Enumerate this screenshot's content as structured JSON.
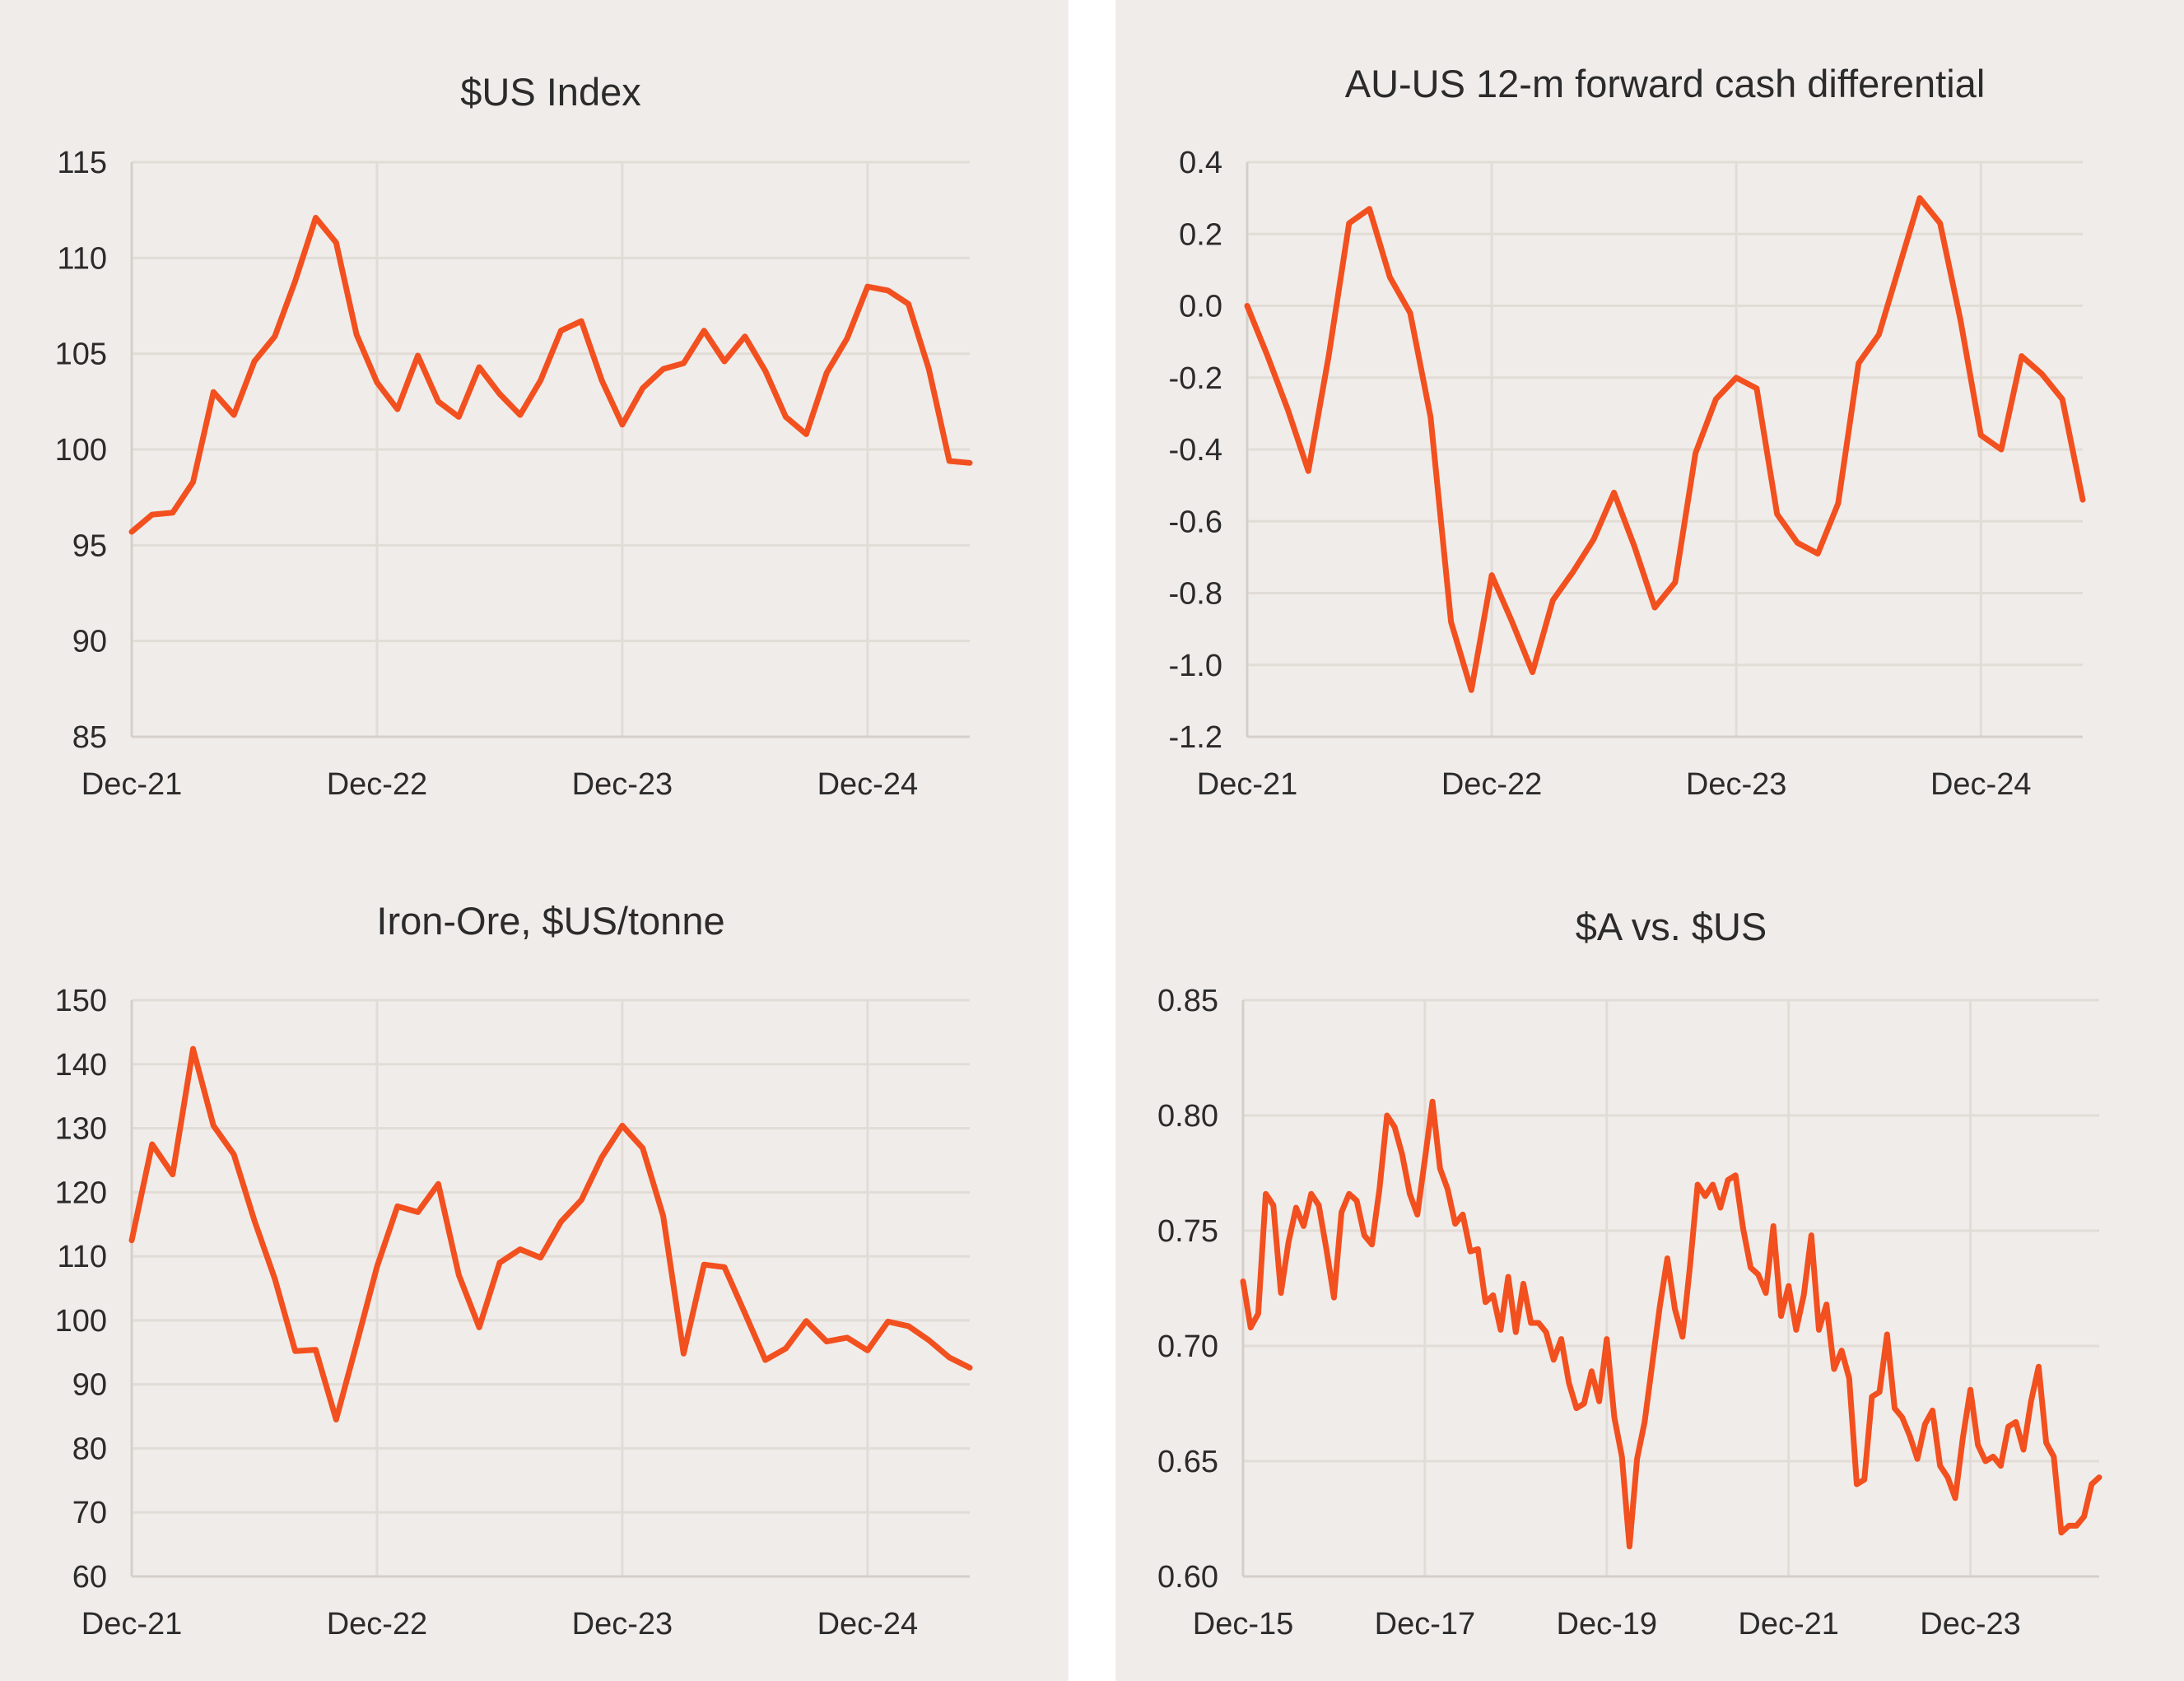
{
  "style": {
    "line_color": "#f2501f",
    "panel_bg": "#f0ece9",
    "grid_color": "#e2dcd7",
    "text_color": "#2b2b2b"
  },
  "chart_data": [
    {
      "type": "line",
      "title": "$US Index",
      "xlabel": "",
      "ylabel": "",
      "x_ticks": [
        "Dec-21",
        "Dec-22",
        "Dec-23",
        "Dec-24"
      ],
      "y_ticks": [
        "115",
        "110",
        "105",
        "100",
        "95",
        "90",
        "85"
      ],
      "ylim": [
        85,
        115
      ],
      "grid": true,
      "x": [
        0,
        1,
        2,
        3,
        4,
        5,
        6,
        7,
        8,
        9,
        10,
        11,
        12,
        13,
        14,
        15,
        16,
        17,
        18,
        19,
        20,
        21,
        22,
        23,
        24,
        25,
        26,
        27,
        28,
        29,
        30,
        31,
        32,
        33,
        34,
        35,
        36,
        37,
        38,
        39,
        40,
        41
      ],
      "x_tick_positions": [
        0,
        12,
        24,
        36
      ],
      "x_max": 41,
      "series": [
        {
          "values": [
            95.7,
            96.6,
            96.7,
            98.3,
            103.0,
            101.8,
            104.6,
            105.9,
            108.8,
            112.1,
            110.8,
            106.0,
            103.5,
            102.1,
            104.9,
            102.5,
            101.7,
            104.3,
            102.9,
            101.8,
            103.6,
            106.2,
            106.7,
            103.6,
            101.3,
            103.2,
            104.2,
            104.5,
            106.2,
            104.6,
            105.9,
            104.1,
            101.7,
            100.8,
            104.0,
            105.8,
            108.5,
            108.3,
            107.6,
            104.2,
            99.4,
            99.3
          ]
        }
      ]
    },
    {
      "type": "line",
      "title": "AU-US 12-m forward cash differential",
      "xlabel": "",
      "ylabel": "",
      "x_ticks": [
        "Dec-21",
        "Dec-22",
        "Dec-23",
        "Dec-24"
      ],
      "y_ticks": [
        "0.4",
        "0.2",
        "0.0",
        "-0.2",
        "-0.4",
        "-0.6",
        "-0.8",
        "-1.0",
        "-1.2"
      ],
      "ylim": [
        -1.2,
        0.4
      ],
      "grid": true,
      "x": [
        0,
        1,
        2,
        3,
        4,
        5,
        6,
        7,
        8,
        9,
        10,
        11,
        12,
        13,
        14,
        15,
        16,
        17,
        18,
        19,
        20,
        21,
        22,
        23,
        24,
        25,
        26,
        27,
        28,
        29,
        30,
        31,
        32,
        33,
        34,
        35,
        36,
        37,
        38,
        39,
        40,
        41
      ],
      "x_tick_positions": [
        0,
        12,
        24,
        36
      ],
      "x_max": 41,
      "series": [
        {
          "values": [
            0.0,
            -0.14,
            -0.29,
            -0.46,
            -0.14,
            0.23,
            0.27,
            0.08,
            -0.02,
            -0.31,
            -0.88,
            -1.07,
            -0.75,
            -0.88,
            -1.02,
            -0.82,
            -0.74,
            -0.65,
            -0.52,
            -0.67,
            -0.84,
            -0.77,
            -0.41,
            -0.26,
            -0.2,
            -0.23,
            -0.58,
            -0.66,
            -0.69,
            -0.55,
            -0.16,
            -0.08,
            0.11,
            0.3,
            0.23,
            -0.04,
            -0.36,
            -0.4,
            -0.14,
            -0.19,
            -0.26,
            -0.54
          ]
        }
      ]
    },
    {
      "type": "line",
      "title": "Iron-Ore, $US/tonne",
      "xlabel": "",
      "ylabel": "",
      "x_ticks": [
        "Dec-21",
        "Dec-22",
        "Dec-23",
        "Dec-24"
      ],
      "y_ticks": [
        "150",
        "140",
        "130",
        "120",
        "110",
        "100",
        "90",
        "80",
        "70",
        "60"
      ],
      "ylim": [
        60,
        150
      ],
      "grid": true,
      "x": [
        0,
        1,
        2,
        3,
        4,
        5,
        6,
        7,
        8,
        9,
        10,
        11,
        12,
        13,
        14,
        15,
        16,
        17,
        18,
        19,
        20,
        21,
        22,
        23,
        24,
        25,
        26,
        27,
        28,
        29,
        30,
        31,
        32,
        33,
        34,
        35,
        36,
        37,
        38,
        39,
        40,
        41
      ],
      "x_tick_positions": [
        0,
        12,
        24,
        36
      ],
      "x_max": 41,
      "series": [
        {
          "values": [
            112.5,
            127.5,
            122.8,
            142.4,
            130.4,
            125.9,
            115.6,
            106.5,
            95.2,
            95.4,
            84.5,
            96.3,
            108.4,
            117.8,
            116.9,
            121.3,
            107.1,
            98.9,
            109.0,
            111.1,
            109.8,
            115.4,
            118.8,
            125.5,
            130.4,
            126.9,
            116.3,
            94.8,
            108.7,
            108.3,
            101.1,
            93.8,
            95.6,
            99.9,
            96.7,
            97.3,
            95.3,
            99.8,
            99.1,
            96.9,
            94.2,
            92.6
          ]
        }
      ]
    },
    {
      "type": "line",
      "title": "$A vs. $US",
      "xlabel": "",
      "ylabel": "",
      "x_ticks": [
        "Dec-15",
        "Dec-17",
        "Dec-19",
        "Dec-21",
        "Dec-23"
      ],
      "y_ticks": [
        "0.85",
        "0.80",
        "0.75",
        "0.70",
        "0.65",
        "0.60"
      ],
      "ylim": [
        0.6,
        0.85
      ],
      "grid": true,
      "x_tick_positions": [
        0,
        24,
        48,
        72,
        96
      ],
      "x_max": 113,
      "series": [
        {
          "values": [
            0.728,
            0.708,
            0.714,
            0.766,
            0.761,
            0.723,
            0.745,
            0.76,
            0.752,
            0.766,
            0.761,
            0.742,
            0.721,
            0.758,
            0.766,
            0.763,
            0.748,
            0.744,
            0.768,
            0.8,
            0.795,
            0.783,
            0.766,
            0.757,
            0.781,
            0.806,
            0.777,
            0.768,
            0.753,
            0.757,
            0.741,
            0.742,
            0.719,
            0.722,
            0.707,
            0.73,
            0.706,
            0.727,
            0.71,
            0.71,
            0.706,
            0.694,
            0.703,
            0.684,
            0.673,
            0.675,
            0.689,
            0.676,
            0.703,
            0.669,
            0.652,
            0.613,
            0.651,
            0.667,
            0.692,
            0.717,
            0.738,
            0.716,
            0.704,
            0.735,
            0.77,
            0.765,
            0.77,
            0.76,
            0.772,
            0.774,
            0.751,
            0.734,
            0.731,
            0.723,
            0.752,
            0.713,
            0.726,
            0.707,
            0.722,
            0.748,
            0.707,
            0.718,
            0.69,
            0.698,
            0.686,
            0.64,
            0.642,
            0.678,
            0.68,
            0.705,
            0.673,
            0.669,
            0.661,
            0.651,
            0.666,
            0.672,
            0.648,
            0.643,
            0.634,
            0.66,
            0.681,
            0.657,
            0.65,
            0.652,
            0.648,
            0.665,
            0.667,
            0.655,
            0.676,
            0.691,
            0.658,
            0.652,
            0.619,
            0.622,
            0.622,
            0.626,
            0.64,
            0.643
          ]
        }
      ]
    }
  ]
}
